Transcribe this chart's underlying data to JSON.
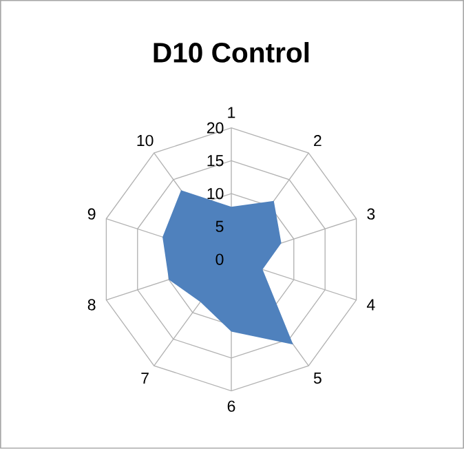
{
  "chart_data": {
    "type": "radar",
    "title": "D10 Control",
    "categories": [
      "1",
      "2",
      "3",
      "4",
      "5",
      "6",
      "7",
      "8",
      "9",
      "10"
    ],
    "series": [
      {
        "color": "#4f81bd",
        "type": "area",
        "values": [
          8,
          11,
          8,
          5,
          16,
          11,
          8,
          10,
          11,
          13
        ]
      }
    ],
    "ylim": [
      0,
      20
    ],
    "yticks": [
      0,
      5,
      10,
      15,
      20
    ],
    "grid": true
  }
}
